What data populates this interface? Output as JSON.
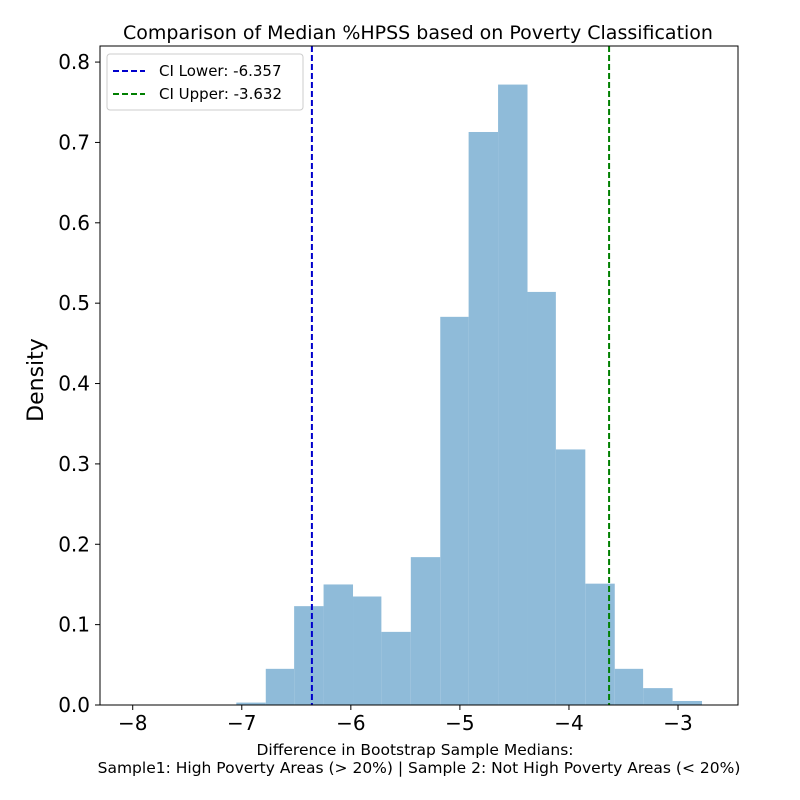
{
  "chart_data": {
    "type": "bar",
    "title": "Comparison of Median %HPSS based on Poverty Classification",
    "xlabel_line1": "Difference in Bootstrap Sample Medians:",
    "xlabel_line2": "Sample1: High Poverty Areas (> 20%) | Sample 2: Not High Poverty Areas (< 20%)",
    "ylabel": "Density",
    "xlim": [
      -8.3,
      -2.45
    ],
    "ylim": [
      0,
      0.82
    ],
    "xticks": [
      -8,
      -7,
      -6,
      -5,
      -4,
      -3
    ],
    "xtick_labels": [
      "−8",
      "−7",
      "−6",
      "−5",
      "−4",
      "−3"
    ],
    "yticks": [
      0.0,
      0.1,
      0.2,
      0.3,
      0.4,
      0.5,
      0.6,
      0.7,
      0.8
    ],
    "ytick_labels": [
      "0.0",
      "0.1",
      "0.2",
      "0.3",
      "0.4",
      "0.5",
      "0.6",
      "0.7",
      "0.8"
    ],
    "bar_color": "#8fbbd9",
    "bins": [
      {
        "x0": -7.05,
        "x1": -6.78,
        "y": 0.003
      },
      {
        "x0": -6.78,
        "x1": -6.52,
        "y": 0.045
      },
      {
        "x0": -6.52,
        "x1": -6.25,
        "y": 0.123
      },
      {
        "x0": -6.25,
        "x1": -5.98,
        "y": 0.15
      },
      {
        "x0": -5.98,
        "x1": -5.72,
        "y": 0.135
      },
      {
        "x0": -5.72,
        "x1": -5.45,
        "y": 0.091
      },
      {
        "x0": -5.45,
        "x1": -5.18,
        "y": 0.184
      },
      {
        "x0": -5.18,
        "x1": -4.92,
        "y": 0.483
      },
      {
        "x0": -4.92,
        "x1": -4.65,
        "y": 0.713
      },
      {
        "x0": -4.65,
        "x1": -4.38,
        "y": 0.772
      },
      {
        "x0": -4.38,
        "x1": -4.12,
        "y": 0.514
      },
      {
        "x0": -4.12,
        "x1": -3.85,
        "y": 0.318
      },
      {
        "x0": -3.85,
        "x1": -3.58,
        "y": 0.151
      },
      {
        "x0": -3.58,
        "x1": -3.32,
        "y": 0.045
      },
      {
        "x0": -3.32,
        "x1": -3.05,
        "y": 0.021
      },
      {
        "x0": -3.05,
        "x1": -2.78,
        "y": 0.005
      }
    ],
    "vlines": [
      {
        "name": "CI Lower: -6.357",
        "x": -6.357,
        "color": "#0000cc"
      },
      {
        "name": "CI Upper: -3.632",
        "x": -3.632,
        "color": "#007f00"
      }
    ],
    "legend_position": "upper left"
  }
}
